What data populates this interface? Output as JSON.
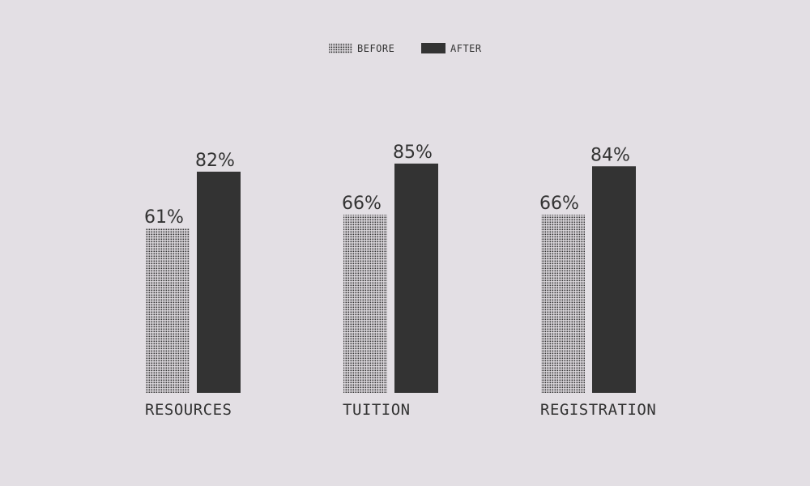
{
  "chart_data": {
    "type": "bar",
    "categories": [
      "RESOURCES",
      "TUITION",
      "REGISTRATION"
    ],
    "series": [
      {
        "name": "BEFORE",
        "values": [
          61,
          66,
          66
        ],
        "labels": [
          "61%",
          "66%",
          "66%"
        ],
        "fill": "dotted"
      },
      {
        "name": "AFTER",
        "values": [
          82,
          85,
          84
        ],
        "labels": [
          "82%",
          "85%",
          "84%"
        ],
        "fill": "solid"
      }
    ],
    "value_suffix": "%",
    "grid": false,
    "legend_position": "top-center",
    "colors": {
      "background": "#e3dfe4",
      "bar": "#333333",
      "text": "#333333"
    }
  }
}
